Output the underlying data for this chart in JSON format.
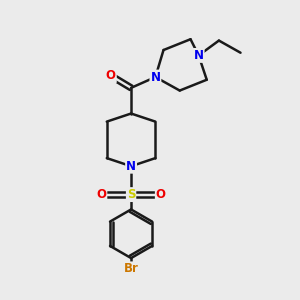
{
  "background_color": "#ebebeb",
  "bond_color": "#1a1a1a",
  "bond_width": 1.8,
  "atom_colors": {
    "N": "#0000ee",
    "O": "#ee0000",
    "S": "#cccc00",
    "Br": "#cc7700",
    "C": "#1a1a1a"
  },
  "font_size_atom": 8.5,
  "xlim": [
    0,
    10
  ],
  "ylim": [
    0,
    11
  ]
}
